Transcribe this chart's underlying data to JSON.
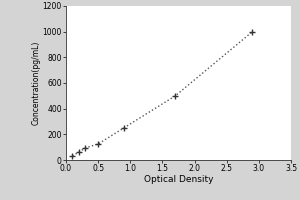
{
  "x_data": [
    0.1,
    0.2,
    0.3,
    0.5,
    0.9,
    1.7,
    2.9
  ],
  "y_data": [
    31,
    62,
    94,
    125,
    250,
    500,
    1000
  ],
  "xlabel": "Optical Density",
  "ylabel": "Concentration(pg/mL)",
  "xlim": [
    0,
    3.5
  ],
  "ylim": [
    0,
    1200
  ],
  "xticks": [
    0,
    0.5,
    1.0,
    1.5,
    2.0,
    2.5,
    3.0,
    3.5
  ],
  "yticks": [
    0,
    200,
    400,
    600,
    800,
    1000,
    1200
  ],
  "line_color": "#555555",
  "marker_color": "#333333",
  "bg_outer": "#d4d4d4",
  "bg_inner": "#ffffff"
}
